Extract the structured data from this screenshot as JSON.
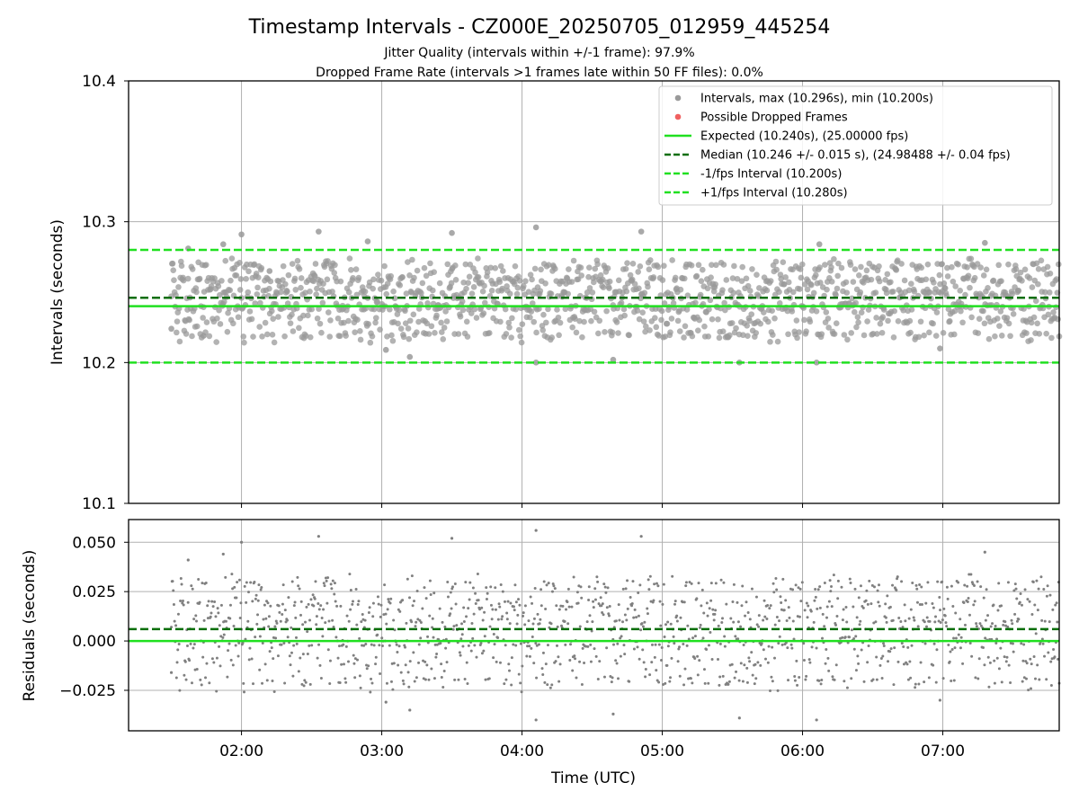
{
  "title": "Timestamp Intervals - CZ000E_20250705_012959_445254",
  "subtitle1": "Jitter Quality (intervals within +/-1 frame): 97.9%",
  "subtitle2": "Dropped Frame Rate (intervals >1 frames late within 50 FF files): 0.0%",
  "colors": {
    "points": "#808080",
    "dropped": "#f04040",
    "expected": "#20e020",
    "median": "#0a6e0a",
    "grid": "#b0b0b0"
  },
  "chart_data": [
    {
      "type": "scatter",
      "xlabel": "",
      "ylabel": "Intervals (seconds)",
      "x_unit": "hours UTC",
      "xlim": [
        1.195,
        7.83
      ],
      "ylim": [
        10.1,
        10.4
      ],
      "yticks": [
        "10.1",
        "10.2",
        "10.3",
        "10.4"
      ],
      "grid": true,
      "legend_position": "top-right",
      "legend": [
        {
          "label": "Intervals, max (10.296s), min (10.200s)",
          "kind": "dot",
          "color": "#9a9a9a"
        },
        {
          "label": "Possible Dropped Frames",
          "kind": "dot",
          "color": "#f06060"
        },
        {
          "label": "Expected (10.240s), (25.00000 fps)",
          "kind": "line",
          "color": "#20e020"
        },
        {
          "label": "Median (10.246 +/- 0.015 s), (24.98488 +/- 0.04 fps)",
          "kind": "dash",
          "color": "#0a6e0a"
        },
        {
          "label": "-1/fps Interval (10.200s)",
          "kind": "dash",
          "color": "#20e020"
        },
        {
          "label": "+1/fps Interval (10.280s)",
          "kind": "dash",
          "color": "#20e020"
        }
      ],
      "reference_lines": {
        "expected": 10.24,
        "median": 10.246,
        "minus_one_fps": 10.2,
        "plus_one_fps": 10.28
      },
      "series_summary": {
        "name": "Intervals",
        "x_range": [
          1.5,
          7.83
        ],
        "max": 10.296,
        "min": 10.2,
        "median": 10.246,
        "sample_points": [
          {
            "x": 1.5,
            "y": 10.224
          },
          {
            "x": 1.62,
            "y": 10.281
          },
          {
            "x": 1.73,
            "y": 10.219
          },
          {
            "x": 1.87,
            "y": 10.284
          },
          {
            "x": 2.0,
            "y": 10.291
          },
          {
            "x": 2.2,
            "y": 10.265
          },
          {
            "x": 2.55,
            "y": 10.293
          },
          {
            "x": 2.9,
            "y": 10.286
          },
          {
            "x": 3.03,
            "y": 10.209
          },
          {
            "x": 3.2,
            "y": 10.204
          },
          {
            "x": 3.5,
            "y": 10.292
          },
          {
            "x": 4.1,
            "y": 10.296
          },
          {
            "x": 4.1,
            "y": 10.2
          },
          {
            "x": 4.65,
            "y": 10.202
          },
          {
            "x": 4.85,
            "y": 10.293
          },
          {
            "x": 5.55,
            "y": 10.2
          },
          {
            "x": 6.1,
            "y": 10.2
          },
          {
            "x": 6.12,
            "y": 10.284
          },
          {
            "x": 6.98,
            "y": 10.21
          },
          {
            "x": 7.3,
            "y": 10.285
          }
        ]
      }
    },
    {
      "type": "scatter",
      "xlabel": "Time (UTC)",
      "ylabel": "Residuals (seconds)",
      "x_unit": "hours UTC",
      "xlim": [
        1.195,
        7.83
      ],
      "ylim": [
        -0.0455,
        0.0615
      ],
      "xticks": [
        {
          "value": 2,
          "label": "02:00"
        },
        {
          "value": 3,
          "label": "03:00"
        },
        {
          "value": 4,
          "label": "04:00"
        },
        {
          "value": 5,
          "label": "05:00"
        },
        {
          "value": 6,
          "label": "06:00"
        },
        {
          "value": 7,
          "label": "07:00"
        }
      ],
      "yticks": [
        {
          "value": 0.05,
          "label": "0.050"
        },
        {
          "value": 0.025,
          "label": "0.025"
        },
        {
          "value": 0.0,
          "label": "0.000"
        },
        {
          "value": -0.025,
          "label": "−0.025"
        }
      ],
      "grid": true,
      "reference_lines": {
        "zero": 0.0,
        "median_residual": 0.006
      },
      "series_summary": {
        "name": "Residuals",
        "x_range": [
          1.5,
          7.83
        ],
        "max": 0.056,
        "min": -0.04,
        "sample_points": [
          {
            "x": 1.5,
            "y": -0.016
          },
          {
            "x": 1.62,
            "y": 0.041
          },
          {
            "x": 1.87,
            "y": 0.044
          },
          {
            "x": 2.0,
            "y": 0.05
          },
          {
            "x": 2.55,
            "y": 0.053
          },
          {
            "x": 3.03,
            "y": -0.031
          },
          {
            "x": 3.2,
            "y": -0.035
          },
          {
            "x": 3.5,
            "y": 0.052
          },
          {
            "x": 4.1,
            "y": 0.056
          },
          {
            "x": 4.1,
            "y": -0.04
          },
          {
            "x": 4.65,
            "y": -0.037
          },
          {
            "x": 4.85,
            "y": 0.053
          },
          {
            "x": 5.55,
            "y": -0.039
          },
          {
            "x": 6.1,
            "y": -0.04
          },
          {
            "x": 6.98,
            "y": -0.03
          },
          {
            "x": 7.3,
            "y": 0.045
          }
        ]
      }
    }
  ]
}
